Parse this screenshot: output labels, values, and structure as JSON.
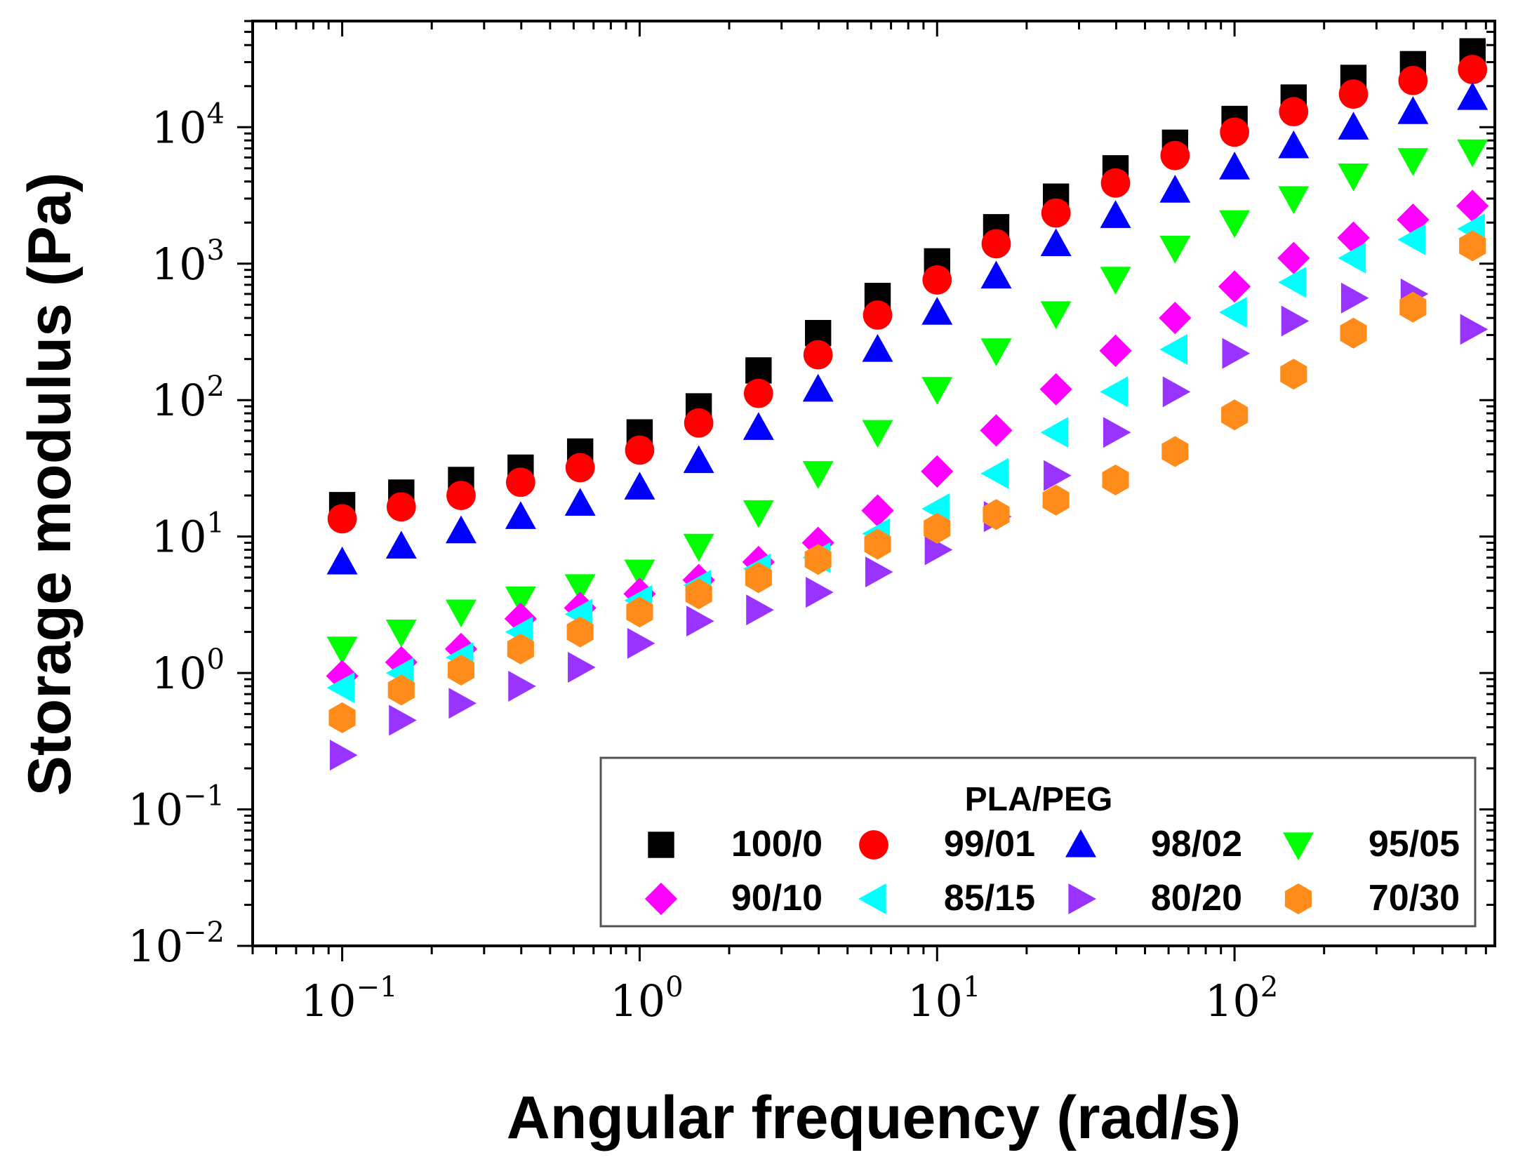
{
  "chart_data": {
    "type": "scatter",
    "xlabel": "Angular frequency (rad/s)",
    "ylabel": "Storage modulus (Pa)",
    "x_scale": "log",
    "y_scale": "log",
    "xlim": [
      0.05,
      750
    ],
    "ylim": [
      0.01,
      60000
    ],
    "x_ticks": [
      {
        "value": 0.1,
        "base": "10",
        "exp": "−1"
      },
      {
        "value": 1,
        "base": "10",
        "exp": "0"
      },
      {
        "value": 10,
        "base": "10",
        "exp": "1"
      },
      {
        "value": 100,
        "base": "10",
        "exp": "2"
      }
    ],
    "y_ticks": [
      {
        "value": 0.01,
        "base": "10",
        "exp": "−2"
      },
      {
        "value": 0.1,
        "base": "10",
        "exp": "−1"
      },
      {
        "value": 1,
        "base": "10",
        "exp": "0"
      },
      {
        "value": 10,
        "base": "10",
        "exp": "1"
      },
      {
        "value": 100,
        "base": "10",
        "exp": "2"
      },
      {
        "value": 1000,
        "base": "10",
        "exp": "3"
      },
      {
        "value": 10000,
        "base": "10",
        "exp": "4"
      }
    ],
    "legend_title": "PLA/PEG",
    "legend_position": "bottom-right",
    "x": [
      0.1,
      0.158,
      0.251,
      0.398,
      0.631,
      1.0,
      1.58,
      2.51,
      3.98,
      6.31,
      10.0,
      15.8,
      25.1,
      39.8,
      63.1,
      100,
      158,
      251,
      398,
      631
    ],
    "series": [
      {
        "name": "100/0",
        "marker": "square",
        "color": "#000000",
        "values": [
          17,
          21,
          26,
          32,
          42,
          58,
          90,
          165,
          310,
          580,
          1040,
          1850,
          3100,
          5000,
          7700,
          11500,
          16500,
          23000,
          29000,
          36000
        ]
      },
      {
        "name": "99/01",
        "marker": "circle",
        "color": "#ff0000",
        "values": [
          13.5,
          16.5,
          20,
          25,
          32,
          43,
          68,
          112,
          215,
          420,
          760,
          1400,
          2350,
          3900,
          6200,
          9200,
          13000,
          17500,
          22000,
          26500
        ]
      },
      {
        "name": "98/02",
        "marker": "triangle-up",
        "color": "#0000ff",
        "values": [
          6.5,
          8.5,
          11,
          14,
          17.5,
          23,
          36,
          63,
          120,
          235,
          440,
          810,
          1400,
          2250,
          3450,
          5100,
          7300,
          10000,
          13000,
          16500
        ]
      },
      {
        "name": "95/05",
        "marker": "triangle-down",
        "color": "#00ff00",
        "values": [
          1.5,
          2.0,
          2.8,
          3.5,
          4.3,
          5.5,
          8.5,
          15,
          29,
          58,
          120,
          230,
          430,
          770,
          1300,
          2000,
          3000,
          4400,
          5700,
          6600
        ]
      },
      {
        "name": "90/10",
        "marker": "diamond",
        "color": "#ff00ff",
        "values": [
          0.95,
          1.2,
          1.5,
          2.5,
          3.0,
          3.8,
          4.8,
          6.5,
          9.0,
          15.5,
          30,
          60,
          120,
          230,
          400,
          680,
          1100,
          1550,
          2100,
          2650
        ]
      },
      {
        "name": "85/15",
        "marker": "triangle-left",
        "color": "#00ffff",
        "values": [
          0.78,
          1.0,
          1.3,
          2.0,
          2.7,
          3.4,
          4.4,
          5.8,
          7.0,
          10.5,
          16,
          29,
          58,
          115,
          235,
          440,
          730,
          1100,
          1500,
          1800
        ]
      },
      {
        "name": "80/20",
        "marker": "triangle-right",
        "color": "#9933ff",
        "values": [
          0.25,
          0.45,
          0.6,
          0.8,
          1.1,
          1.65,
          2.4,
          2.9,
          3.9,
          5.5,
          8.0,
          14,
          28,
          58,
          115,
          220,
          380,
          560,
          600,
          330
        ]
      },
      {
        "name": "70/30",
        "marker": "hexagon",
        "color": "#ff8c1a",
        "values": [
          0.47,
          0.75,
          1.05,
          1.5,
          2.0,
          2.8,
          3.8,
          5.0,
          6.8,
          8.8,
          11.5,
          14.5,
          18.5,
          26,
          42,
          78,
          155,
          310,
          480,
          1350
        ]
      }
    ]
  }
}
